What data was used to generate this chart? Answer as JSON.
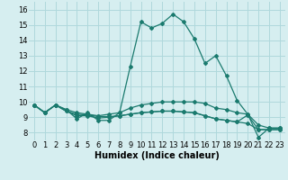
{
  "title": "",
  "xlabel": "Humidex (Indice chaleur)",
  "bg_color": "#d6eef0",
  "line_color": "#1a7a6e",
  "grid_color": "#afd8dc",
  "x_values": [
    0,
    1,
    2,
    3,
    4,
    5,
    6,
    7,
    8,
    9,
    10,
    11,
    12,
    13,
    14,
    15,
    16,
    17,
    18,
    19,
    20,
    21,
    22,
    23
  ],
  "series": [
    [
      9.8,
      9.3,
      9.8,
      9.5,
      8.9,
      9.3,
      8.8,
      8.8,
      9.3,
      12.3,
      15.2,
      14.8,
      15.1,
      15.7,
      15.2,
      14.1,
      12.5,
      13.0,
      11.7,
      10.1,
      9.2,
      7.7,
      8.3,
      8.3
    ],
    [
      9.8,
      9.3,
      9.8,
      9.5,
      9.3,
      9.2,
      9.1,
      9.2,
      9.3,
      9.6,
      9.8,
      9.9,
      10.0,
      10.0,
      10.0,
      10.0,
      9.9,
      9.6,
      9.5,
      9.3,
      9.2,
      8.5,
      8.3,
      8.3
    ],
    [
      9.8,
      9.3,
      9.8,
      9.4,
      9.1,
      9.1,
      8.95,
      9.0,
      9.1,
      9.2,
      9.3,
      9.35,
      9.4,
      9.4,
      9.35,
      9.3,
      9.1,
      8.9,
      8.8,
      8.7,
      8.6,
      8.2,
      8.2,
      8.2
    ],
    [
      9.8,
      9.3,
      9.8,
      9.4,
      9.2,
      9.15,
      9.05,
      9.05,
      9.1,
      9.2,
      9.3,
      9.35,
      9.4,
      9.4,
      9.35,
      9.3,
      9.1,
      8.9,
      8.8,
      8.7,
      9.15,
      8.2,
      8.2,
      8.2
    ]
  ],
  "xlim": [
    -0.5,
    23.5
  ],
  "ylim": [
    7.5,
    16.5
  ],
  "yticks": [
    8,
    9,
    10,
    11,
    12,
    13,
    14,
    15,
    16
  ],
  "xticks": [
    0,
    1,
    2,
    3,
    4,
    5,
    6,
    7,
    8,
    9,
    10,
    11,
    12,
    13,
    14,
    15,
    16,
    17,
    18,
    19,
    20,
    21,
    22,
    23
  ],
  "tick_fontsize": 6.0,
  "xlabel_fontsize": 7.0,
  "marker_size": 2.0,
  "line_width": 0.9
}
